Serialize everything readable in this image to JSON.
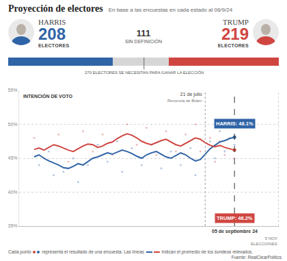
{
  "title": "Proyección de electores",
  "subtitle": "En base a las encuestas en cada estado al 06/9/24",
  "electors_label": "ELECTORES",
  "chart_data": [
    {
      "type": "bar",
      "orientation": "horizontal",
      "stacked": true,
      "tick_labels": false,
      "categories": [
        null
      ],
      "series": [
        {
          "name": "HARRIS",
          "color": "#2f64a6",
          "values": [
            208
          ]
        },
        {
          "name": "SIN DEFINICIÓN",
          "color": "#d6d6d6",
          "values": [
            111
          ]
        },
        {
          "name": "TRUMP",
          "color": "#cf4641",
          "values": [
            219
          ]
        }
      ],
      "xlim": [
        0,
        538
      ],
      "threshold": {
        "value": 270,
        "label": "270 ELECTORES SE NECESITAN PARA GANAR LA ELECCIÓN"
      }
    },
    {
      "type": "line",
      "title": "INTENCIÓN DE VOTO",
      "grid": true,
      "tick_labels": "y",
      "categories": [
        null,
        null,
        null,
        null,
        null,
        null,
        null,
        null,
        null,
        null,
        null,
        null,
        null,
        null,
        null,
        null,
        null,
        null,
        null,
        null,
        null,
        null,
        null,
        null,
        null,
        null,
        null,
        null,
        null,
        null,
        null,
        null,
        null,
        null,
        null,
        null,
        null,
        null,
        null,
        null,
        null,
        null,
        null,
        null,
        null,
        null,
        null,
        null,
        null,
        null,
        null
      ],
      "series": [
        {
          "name": "HARRIS",
          "color": "#2f64a6",
          "end_label": "HARRIS: 48.1%",
          "values": [
            45.2,
            45.5,
            45.0,
            44.6,
            44.3,
            44.0,
            43.6,
            43.5,
            43.8,
            44.2,
            44.0,
            44.5,
            45.0,
            45.2,
            45.5,
            45.8,
            45.6,
            45.9,
            46.2,
            46.0,
            45.7,
            45.3,
            45.0,
            45.5,
            45.8,
            46.0,
            45.6,
            45.2,
            45.0,
            45.4,
            45.8,
            45.5,
            45.0,
            44.6,
            44.8,
            45.6,
            46.4,
            46.9,
            47.4,
            47.6,
            47.9,
            48.1,
            null,
            null,
            null,
            null,
            null,
            null,
            null,
            null,
            null
          ],
          "polls": [
            [
              1,
              44
            ],
            [
              3,
              46
            ],
            [
              4,
              42.5
            ],
            [
              6,
              43
            ],
            [
              8,
              45
            ],
            [
              9,
              41.5
            ],
            [
              11,
              44
            ],
            [
              13,
              47
            ],
            [
              15,
              44.5
            ],
            [
              17,
              47.5
            ],
            [
              18,
              43
            ],
            [
              20,
              46.5
            ],
            [
              22,
              44
            ],
            [
              24,
              47
            ],
            [
              26,
              43.5
            ],
            [
              28,
              46
            ],
            [
              30,
              44
            ],
            [
              32,
              46.5
            ],
            [
              33,
              42.5
            ],
            [
              36,
              47.5
            ],
            [
              37,
              45
            ],
            [
              38,
              49
            ],
            [
              39,
              46
            ],
            [
              40,
              50
            ],
            [
              41,
              47
            ]
          ]
        },
        {
          "name": "TRUMP",
          "color": "#cf4641",
          "end_label": "TRUMP: 46.2%",
          "values": [
            46.3,
            46.5,
            46.2,
            46.6,
            47.0,
            46.8,
            46.5,
            46.2,
            46.0,
            46.4,
            46.8,
            47.1,
            47.0,
            46.6,
            46.8,
            47.2,
            47.4,
            47.9,
            48.3,
            48.6,
            48.4,
            48.0,
            47.5,
            47.2,
            47.0,
            47.3,
            47.6,
            47.8,
            47.4,
            47.0,
            46.8,
            47.2,
            47.6,
            48.0,
            47.8,
            47.3,
            46.9,
            46.7,
            46.9,
            46.6,
            46.4,
            46.2,
            null,
            null,
            null,
            null,
            null,
            null,
            null,
            null,
            null
          ],
          "polls": [
            [
              0,
              48
            ],
            [
              2,
              45
            ],
            [
              5,
              48.5
            ],
            [
              7,
              44.5
            ],
            [
              10,
              49
            ],
            [
              12,
              46
            ],
            [
              14,
              48.5
            ],
            [
              16,
              45.5
            ],
            [
              19,
              50
            ],
            [
              21,
              47
            ],
            [
              23,
              49.5
            ],
            [
              25,
              45.5
            ],
            [
              27,
              49
            ],
            [
              29,
              46
            ],
            [
              31,
              48.5
            ],
            [
              33,
              50
            ],
            [
              34,
              46
            ],
            [
              36,
              48
            ],
            [
              37,
              44.5
            ],
            [
              38,
              47.5
            ],
            [
              39,
              45.5
            ],
            [
              40,
              48
            ],
            [
              41,
              45
            ]
          ]
        }
      ],
      "ylim": [
        35,
        55
      ],
      "yticks": [
        {
          "value": 35,
          "label": "35%"
        },
        {
          "value": 40,
          "label": "40%"
        },
        {
          "value": 45,
          "label": "45%"
        },
        {
          "value": 50,
          "label": "50%"
        },
        {
          "value": 55,
          "label": "55%"
        }
      ],
      "annotations": [
        {
          "text": "21 de julio",
          "subtext": "Renuncia de Biden",
          "at": 35
        },
        {
          "text": "05 de septiembre 24",
          "at": 41
        },
        {
          "text": "5 NOV",
          "subtext": "ELECCIONES",
          "at": 50
        }
      ]
    }
  ],
  "footer": {
    "parts": [
      "Cada punto",
      "representa el resultado de una encuesta. Las líneas",
      "indican el promedio de los sondeos relevados."
    ],
    "source": "Fuente: RealClearPolitics"
  }
}
